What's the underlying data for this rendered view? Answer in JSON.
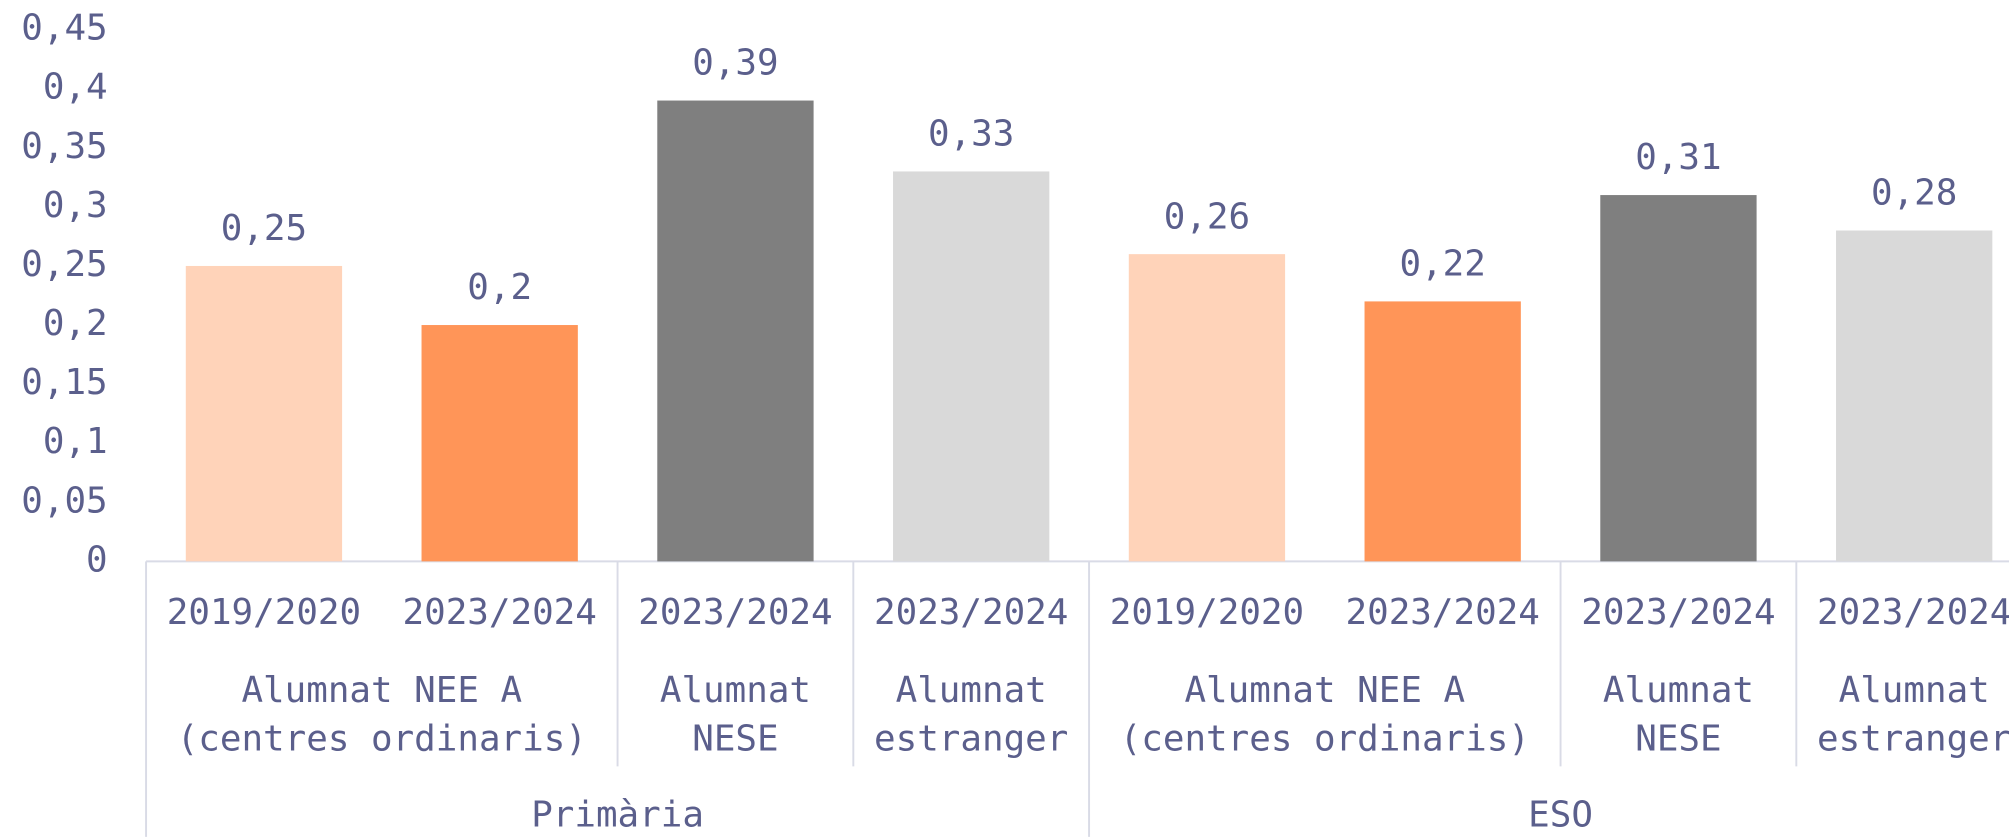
{
  "chart_data": {
    "type": "bar",
    "sections": [
      {
        "name": "Primària",
        "groups": [
          {
            "name": [
              "Alumnat NEE A",
              "(centres ordinaris)"
            ],
            "categories": [
              "2019/2020",
              "2023/2024"
            ]
          },
          {
            "name": [
              "Alumnat",
              "NESE"
            ],
            "categories": [
              "2023/2024"
            ]
          },
          {
            "name": [
              "Alumnat",
              "estranger"
            ],
            "categories": [
              "2023/2024"
            ]
          }
        ]
      },
      {
        "name": "ESO",
        "groups": [
          {
            "name": [
              "Alumnat NEE A",
              "(centres ordinaris)"
            ],
            "categories": [
              "2019/2020",
              "2023/2024"
            ]
          },
          {
            "name": [
              "Alumnat",
              "NESE"
            ],
            "categories": [
              "2023/2024"
            ]
          },
          {
            "name": [
              "Alumnat",
              "estranger"
            ],
            "categories": [
              "2023/2024"
            ]
          }
        ]
      }
    ],
    "values": [
      0.25,
      0.2,
      0.39,
      0.33,
      0.26,
      0.22,
      0.31,
      0.28
    ],
    "value_labels": [
      "0,25",
      "0,2",
      "0,39",
      "0,33",
      "0,26",
      "0,22",
      "0,31",
      "0,28"
    ],
    "colors": [
      "#ffd3b9",
      "#ff9558",
      "#7f7f7f",
      "#d9d9d9",
      "#ffd3b9",
      "#ff9558",
      "#7f7f7f",
      "#d9d9d9"
    ],
    "ylim": [
      0,
      0.45
    ],
    "yticks": [
      0,
      {
        "value": 0.05,
        "label": "0,05"
      },
      {
        "value": 0.1,
        "label": "0,1"
      },
      {
        "value": 0.15,
        "label": "0,15"
      },
      {
        "value": 0.2,
        "label": "0,2"
      },
      {
        "value": 0.25,
        "label": "0,25"
      },
      {
        "value": 0.3,
        "label": "0,3"
      },
      {
        "value": 0.35,
        "label": "0,35"
      },
      {
        "value": 0.4,
        "label": "0,4"
      },
      {
        "value": 0.45,
        "label": "0,45"
      }
    ],
    "grid": false
  }
}
